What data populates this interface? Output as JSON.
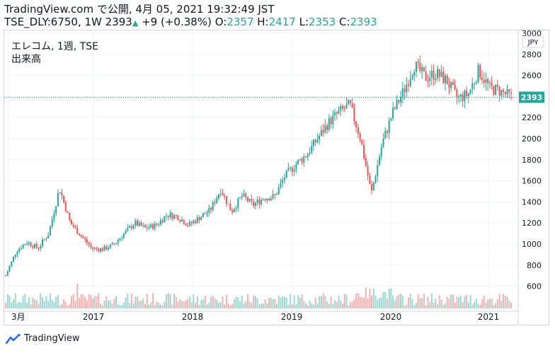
{
  "header": {
    "line1": "TradingView.com で公開, 4月 05, 2021 19:32:49 JST",
    "symbol_info": "TSE_DLY:6750, 1W",
    "last": "2393",
    "change": "+9 (+0.38%)",
    "o_label": "O:",
    "o_value": "2357",
    "h_label": "H:",
    "h_value": "2417",
    "l_label": "L:",
    "l_value": "2353",
    "c_label": "C:",
    "c_value": "2393"
  },
  "legend": {
    "title": "エレコム, 1週, TSE",
    "volume_label": "出来高"
  },
  "footer": {
    "brand": "TradingView"
  },
  "colors": {
    "up": "#26a69a",
    "down": "#ef5350",
    "price_label": "#26a69a",
    "grid": "#f0f3fa",
    "axis_text": "#131722"
  },
  "chart_data": {
    "type": "candlestick",
    "currency": "JPY",
    "last_price_label": "2393",
    "y_ticks": [
      600,
      800,
      1000,
      1200,
      1400,
      1600,
      1800,
      2000,
      2200,
      2400,
      2600,
      2800,
      3000
    ],
    "ylim": [
      430,
      3000
    ],
    "x_labels": [
      "3月",
      "2017",
      "2018",
      "2019",
      "2020",
      "2021"
    ],
    "grid": true,
    "price_path": [
      [
        "3月",
        700
      ],
      [
        "2016-04",
        940
      ],
      [
        "2016-05",
        1020
      ],
      [
        "2016-06",
        960
      ],
      [
        "2016-07",
        1100
      ],
      [
        "2016-08",
        1530
      ],
      [
        "2016-09",
        1200
      ],
      [
        "2016-10",
        1080
      ],
      [
        "2016-11",
        960
      ],
      [
        "2016-12",
        950
      ],
      [
        "2017",
        990
      ],
      [
        "2017-03",
        1100
      ],
      [
        "2017-05",
        1200
      ],
      [
        "2017-07",
        1150
      ],
      [
        "2017-09",
        1180
      ],
      [
        "2017-11",
        1280
      ],
      [
        "2018",
        1260
      ],
      [
        "2018-02",
        1180
      ],
      [
        "2018-03",
        1250
      ],
      [
        "2018-05",
        1320
      ],
      [
        "2018-06",
        1520
      ],
      [
        "2018-08",
        1310
      ],
      [
        "2018-10",
        1460
      ],
      [
        "2018-11",
        1370
      ],
      [
        "2018-12",
        1440
      ],
      [
        "2019",
        1450
      ],
      [
        "2019-02",
        1650
      ],
      [
        "2019-04",
        1760
      ],
      [
        "2019-06",
        1850
      ],
      [
        "2019-08",
        2000
      ],
      [
        "2019-10",
        2150
      ],
      [
        "2019-12",
        2250
      ],
      [
        "2020",
        2320
      ],
      [
        "2020-02",
        2000
      ],
      [
        "2020-03",
        1480
      ],
      [
        "2020-04",
        1950
      ],
      [
        "2020-05",
        2250
      ],
      [
        "2020-06",
        2450
      ],
      [
        "2020-07",
        2700
      ],
      [
        "2020-08",
        2580
      ],
      [
        "2020-09",
        2620
      ],
      [
        "2020-10",
        2550
      ],
      [
        "2020-11",
        2380
      ],
      [
        "2020-12",
        2420
      ],
      [
        "2021",
        2650
      ],
      [
        "2021-02",
        2480
      ],
      [
        "2021-03",
        2450
      ],
      [
        "2021-04",
        2393
      ]
    ]
  }
}
